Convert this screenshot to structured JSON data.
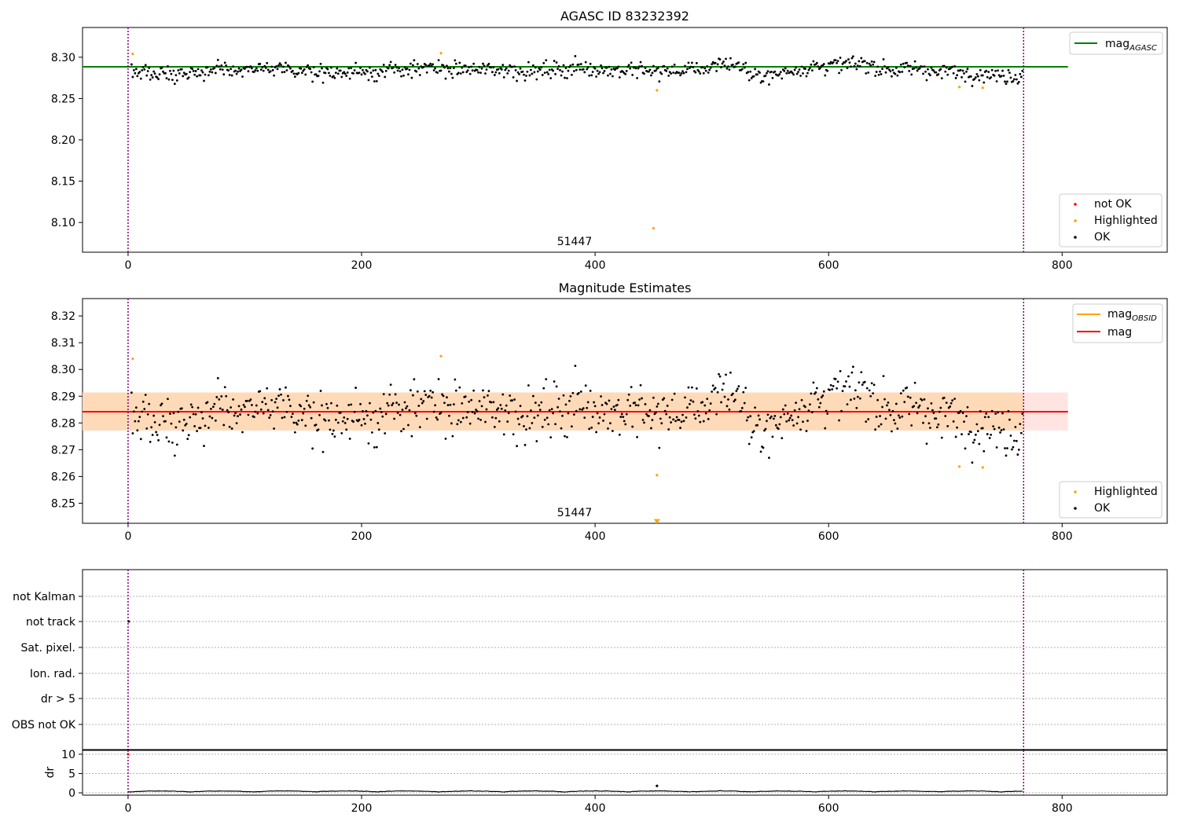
{
  "figure": {
    "title": "AGASC ID 83232392",
    "subtitle": "Magnitude Estimates"
  },
  "colors": {
    "ok": "#000000",
    "highlighted": "#ffa500",
    "not_ok": "#ff0000",
    "mag_agasc_line": "#008000",
    "mag_obsid_line": "#ffa500",
    "mag_line": "#ff0000",
    "band_inner": "#ffdab9",
    "band_outer": "#ffe4e1",
    "obs_boundary": "#800080"
  },
  "chart_data": [
    {
      "id": "agasc",
      "type": "scatter",
      "title": "AGASC ID 83232392",
      "xlim": [
        -39,
        890
      ],
      "ylim": [
        8.064,
        8.336
      ],
      "xticks": [
        0,
        200,
        400,
        600,
        800
      ],
      "yticks": [
        8.1,
        8.15,
        8.2,
        8.25,
        8.3
      ],
      "ytick_labels": [
        "8.10",
        "8.15",
        "8.20",
        "8.25",
        "8.30"
      ],
      "obs_boundaries": [
        0,
        767
      ],
      "annotations": [
        {
          "text": "51447",
          "x": 383,
          "y": 8.078
        }
      ],
      "reference_lines": [
        {
          "name": "mag_AGASC",
          "y": 8.2885,
          "x_range": [
            -39,
            805
          ],
          "color": "#008000"
        }
      ],
      "legend_lines": {
        "placement": "upper right",
        "entries": [
          {
            "label": "mag",
            "sub": "AGASC",
            "color": "#008000"
          }
        ]
      },
      "legend_points": {
        "placement": "lower right",
        "entries": [
          {
            "label": "not OK",
            "color": "#ff0000"
          },
          {
            "label": "Highlighted",
            "color": "#ffa500"
          },
          {
            "label": "OK",
            "color": "#000000"
          }
        ]
      },
      "series": [
        {
          "name": "Highlighted",
          "points": [
            [
              4,
              8.304
            ],
            [
              268,
              8.305
            ],
            [
              453,
              8.26
            ],
            [
              450,
              8.093
            ],
            [
              712,
              8.264
            ],
            [
              732,
              8.263
            ]
          ]
        },
        {
          "name": "OK",
          "generated": "black points along y = 8.2848 with sigma 0.0065, x from 3 to 766"
        }
      ]
    },
    {
      "id": "magnitude",
      "type": "scatter",
      "title": "Magnitude Estimates",
      "xlim": [
        -39,
        890
      ],
      "ylim": [
        8.2425,
        8.3265
      ],
      "xticks": [
        0,
        200,
        400,
        600,
        800
      ],
      "yticks": [
        8.25,
        8.26,
        8.27,
        8.28,
        8.29,
        8.3,
        8.31,
        8.32
      ],
      "ytick_labels": [
        "8.25",
        "8.26",
        "8.27",
        "8.28",
        "8.29",
        "8.30",
        "8.31",
        "8.32"
      ],
      "obs_boundaries": [
        0,
        767
      ],
      "annotations": [
        {
          "text": "51447",
          "x": 383,
          "y": 8.2462
        }
      ],
      "band_outer": [
        8.2772,
        8.2914
      ],
      "band_inner": [
        8.2772,
        8.2914
      ],
      "band_inner_x": [
        -39,
        767
      ],
      "band_outer_x": [
        -39,
        805
      ],
      "reference_lines": [
        {
          "name": "mag",
          "y": 8.2842,
          "x_range": [
            -39,
            805
          ],
          "color": "#ff0000"
        }
      ],
      "legend_lines": {
        "placement": "upper right",
        "entries": [
          {
            "label": "mag",
            "sub": "OBSID",
            "color": "#ffa500"
          },
          {
            "label": "mag",
            "sub": "",
            "color": "#ff0000"
          }
        ]
      },
      "legend_points": {
        "placement": "lower right",
        "entries": [
          {
            "label": "Highlighted",
            "color": "#ffa500"
          },
          {
            "label": "OK",
            "color": "#000000"
          }
        ]
      },
      "series": [
        {
          "name": "Highlighted",
          "points": [
            [
              4,
              8.304
            ],
            [
              268,
              8.305
            ],
            [
              453,
              8.2605
            ],
            [
              712,
              8.2637
            ],
            [
              732,
              8.2634
            ]
          ]
        },
        {
          "name": "OK",
          "generated": "same as panel above"
        }
      ],
      "markers": [
        {
          "type": "triangle-down",
          "x": 453,
          "y": 8.2432,
          "color": "#ffa500"
        }
      ]
    },
    {
      "id": "flags",
      "type": "scatter",
      "xlim": [
        -39,
        890
      ],
      "categories": [
        "not Kalman",
        "not track",
        "Sat. pixel.",
        "Ion. rad.",
        "dr > 5",
        "OBS not OK"
      ],
      "obs_boundaries": [
        0,
        767
      ],
      "points": [
        {
          "x": 0,
          "category": "not track"
        }
      ]
    },
    {
      "id": "dr",
      "type": "line",
      "ylabel": "dr",
      "xlim": [
        -39,
        890
      ],
      "ylim": [
        -0.6,
        11
      ],
      "yticks": [
        0,
        5,
        10
      ],
      "ytick_labels": [
        "0",
        "5",
        "10"
      ],
      "xticks": [
        0,
        200,
        400,
        600,
        800
      ],
      "xtick_labels": [
        "0",
        "200",
        "400",
        "600",
        "800"
      ],
      "obs_boundaries": [
        0,
        767
      ],
      "outliers": [
        {
          "x": 453,
          "y": 1.8
        },
        {
          "x": 0,
          "y": 10.0,
          "color": "#ff0000"
        }
      ],
      "baseline": "values between 0.1 and 0.6 for x from 0 to 767"
    }
  ]
}
